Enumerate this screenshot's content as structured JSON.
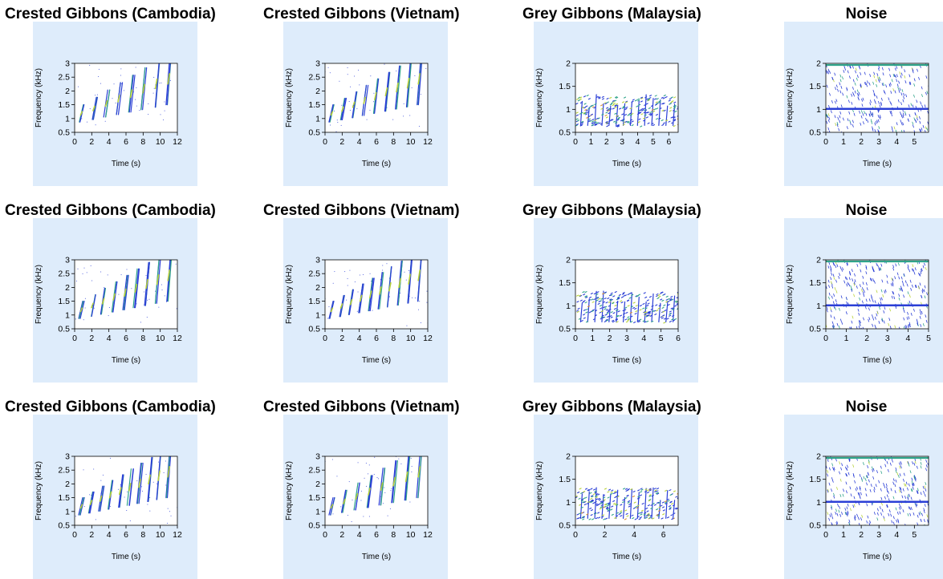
{
  "colors": {
    "panel_bg": "#deecfb",
    "plot_bg": "#ffffff",
    "low": "#2b3fd6",
    "mid": "#2fa38a",
    "high": "#b8d23a",
    "peak": "#d9913a"
  },
  "chart_data": [
    {
      "type": "heatmap",
      "title": "Crested Gibbons (Cambodia)",
      "xlabel": "Time (s)",
      "ylabel": "Frequency (kHz)",
      "xlim": [
        0,
        12
      ],
      "ylim": [
        0.5,
        3
      ],
      "x_ticks": [
        "0",
        "2",
        "4",
        "6",
        "8",
        "10",
        "12"
      ],
      "y_ticks": [
        "0.5",
        "1",
        "1.5",
        "2",
        "2.5",
        "3"
      ]
    },
    {
      "type": "heatmap",
      "title": "Crested Gibbons (Vietnam)",
      "xlabel": "Time (s)",
      "ylabel": "Frequency (kHz)",
      "xlim": [
        0,
        12
      ],
      "ylim": [
        0.5,
        3
      ],
      "x_ticks": [
        "0",
        "2",
        "4",
        "6",
        "8",
        "10",
        "12"
      ],
      "y_ticks": [
        "0.5",
        "1",
        "1.5",
        "2",
        "2.5",
        "3"
      ]
    },
    {
      "type": "heatmap",
      "title": "Grey Gibbons (Malaysia)",
      "xlabel": "Time (s)",
      "ylabel": "Frequency (kHz)",
      "xlim": [
        0,
        6.6
      ],
      "ylim": [
        0.5,
        2
      ],
      "x_ticks": [
        "0",
        "1",
        "2",
        "3",
        "4",
        "5",
        "6"
      ],
      "y_ticks": [
        "0.5",
        "1",
        "1.5",
        "2"
      ]
    },
    {
      "type": "heatmap",
      "title": "Noise",
      "xlabel": "Time (s)",
      "ylabel": "Frequency (kHz)",
      "xlim": [
        0,
        5.8
      ],
      "ylim": [
        0.5,
        2
      ],
      "x_ticks": [
        "0",
        "1",
        "2",
        "3",
        "4",
        "5"
      ],
      "y_ticks": [
        "0.5",
        "1",
        "1.5",
        "2"
      ]
    },
    {
      "type": "heatmap",
      "title": "Crested Gibbons (Cambodia)",
      "xlabel": "Time (s)",
      "ylabel": "Frequency (kHz)",
      "xlim": [
        0,
        12
      ],
      "ylim": [
        0.5,
        3
      ],
      "x_ticks": [
        "0",
        "2",
        "4",
        "6",
        "8",
        "10",
        "12"
      ],
      "y_ticks": [
        "0.5",
        "1",
        "1.5",
        "2",
        "2.5",
        "3"
      ]
    },
    {
      "type": "heatmap",
      "title": "Crested Gibbons (Vietnam)",
      "xlabel": "Time (s)",
      "ylabel": "Frequency (kHz)",
      "xlim": [
        0,
        12
      ],
      "ylim": [
        0.5,
        3
      ],
      "x_ticks": [
        "0",
        "2",
        "4",
        "6",
        "8",
        "10",
        "12"
      ],
      "y_ticks": [
        "0.5",
        "1",
        "1.5",
        "2",
        "2.5",
        "3"
      ]
    },
    {
      "type": "heatmap",
      "title": "Grey Gibbons (Malaysia)",
      "xlabel": "Time (s)",
      "ylabel": "Frequency (kHz)",
      "xlim": [
        0,
        6
      ],
      "ylim": [
        0.5,
        2
      ],
      "x_ticks": [
        "0",
        "1",
        "2",
        "3",
        "4",
        "5",
        "6"
      ],
      "y_ticks": [
        "0.5",
        "1",
        "1.5",
        "2"
      ]
    },
    {
      "type": "heatmap",
      "title": "Noise",
      "xlabel": "Time (s)",
      "ylabel": "Frequency (kHz)",
      "xlim": [
        0,
        5
      ],
      "ylim": [
        0.5,
        2
      ],
      "x_ticks": [
        "0",
        "1",
        "2",
        "3",
        "4",
        "5"
      ],
      "y_ticks": [
        "0.5",
        "1",
        "1.5",
        "2"
      ]
    },
    {
      "type": "heatmap",
      "title": "Crested Gibbons (Cambodia)",
      "xlabel": "Time (s)",
      "ylabel": "Frequency (kHz)",
      "xlim": [
        0,
        12
      ],
      "ylim": [
        0.5,
        3
      ],
      "x_ticks": [
        "0",
        "2",
        "4",
        "6",
        "8",
        "10",
        "12"
      ],
      "y_ticks": [
        "0.5",
        "1",
        "1.5",
        "2",
        "2.5",
        "3"
      ]
    },
    {
      "type": "heatmap",
      "title": "Crested Gibbons (Vietnam)",
      "xlabel": "Time (s)",
      "ylabel": "Frequency (kHz)",
      "xlim": [
        0,
        12
      ],
      "ylim": [
        0.5,
        3
      ],
      "x_ticks": [
        "0",
        "2",
        "4",
        "6",
        "8",
        "10",
        "12"
      ],
      "y_ticks": [
        "0.5",
        "1",
        "1.5",
        "2",
        "2.5",
        "3"
      ]
    },
    {
      "type": "heatmap",
      "title": "Grey Gibbons (Malaysia)",
      "xlabel": "Time (s)",
      "ylabel": "Frequency (kHz)",
      "xlim": [
        0,
        7
      ],
      "ylim": [
        0.5,
        2
      ],
      "x_ticks": [
        "0",
        "2",
        "4",
        "6"
      ],
      "y_ticks": [
        "0.5",
        "1",
        "1.5",
        "2"
      ]
    },
    {
      "type": "heatmap",
      "title": "Noise",
      "xlabel": "Time (s)",
      "ylabel": "Frequency (kHz)",
      "xlim": [
        0,
        5.8
      ],
      "ylim": [
        0.5,
        2
      ],
      "x_ticks": [
        "0",
        "1",
        "2",
        "3",
        "4",
        "5"
      ],
      "y_ticks": [
        "0.5",
        "1",
        "1.5",
        "2"
      ]
    }
  ]
}
